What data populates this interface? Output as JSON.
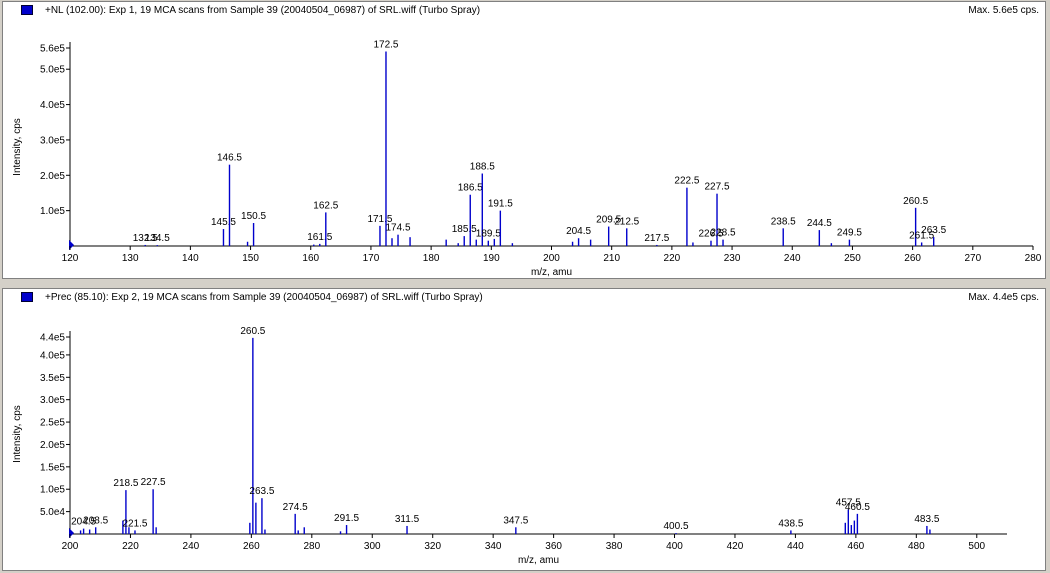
{
  "chart_data": [
    {
      "type": "bar",
      "title": "+NL (102.00): Exp 1, 19 MCA scans from Sample 39 (20040504_06987) of SRL.wiff (Turbo Spray)",
      "max_label": "Max. 5.6e5 cps.",
      "xlabel": "m/z, amu",
      "ylabel": "Intensity, cps",
      "xlim": [
        120,
        280
      ],
      "ylim": [
        0,
        560000
      ],
      "x_ticks": [
        120,
        130,
        140,
        150,
        160,
        170,
        180,
        190,
        200,
        210,
        220,
        230,
        240,
        250,
        260,
        270,
        280
      ],
      "y_ticks": [
        {
          "value": 100000,
          "label": "1.0e5"
        },
        {
          "value": 200000,
          "label": "2.0e5"
        },
        {
          "value": 300000,
          "label": "3.0e5"
        },
        {
          "value": 400000,
          "label": "4.0e5"
        },
        {
          "value": 500000,
          "label": "5.0e5"
        },
        {
          "value": 560000,
          "label": "5.6e5"
        }
      ],
      "grid": false,
      "color": "#0000cc",
      "peaks": [
        {
          "x": 132.5,
          "y": 3000,
          "label": "132.5"
        },
        {
          "x": 134.5,
          "y": 2500,
          "label": "134.5"
        },
        {
          "x": 145.5,
          "y": 48000,
          "label": "145.5"
        },
        {
          "x": 146.5,
          "y": 230000,
          "label": "146.5"
        },
        {
          "x": 149.5,
          "y": 12000
        },
        {
          "x": 150.5,
          "y": 65000,
          "label": "150.5"
        },
        {
          "x": 160.5,
          "y": 4000
        },
        {
          "x": 161.5,
          "y": 6000,
          "label": "161.5"
        },
        {
          "x": 162.5,
          "y": 95000,
          "label": "162.5"
        },
        {
          "x": 171.5,
          "y": 57000,
          "label": "171.5"
        },
        {
          "x": 172.5,
          "y": 550000,
          "label": "172.5"
        },
        {
          "x": 173.5,
          "y": 22000
        },
        {
          "x": 174.5,
          "y": 32000,
          "label": "174.5"
        },
        {
          "x": 176.5,
          "y": 25000
        },
        {
          "x": 182.5,
          "y": 18000
        },
        {
          "x": 184.5,
          "y": 8000
        },
        {
          "x": 185.5,
          "y": 28000,
          "label": "185.5"
        },
        {
          "x": 186.5,
          "y": 145000,
          "label": "186.5"
        },
        {
          "x": 187.5,
          "y": 18000
        },
        {
          "x": 188.5,
          "y": 205000,
          "label": "188.5"
        },
        {
          "x": 189.5,
          "y": 15000,
          "label": "189.5"
        },
        {
          "x": 190.5,
          "y": 20000
        },
        {
          "x": 191.5,
          "y": 100000,
          "label": "191.5"
        },
        {
          "x": 193.5,
          "y": 8000
        },
        {
          "x": 203.5,
          "y": 12000
        },
        {
          "x": 204.5,
          "y": 22000,
          "label": "204.5"
        },
        {
          "x": 206.5,
          "y": 18000
        },
        {
          "x": 209.5,
          "y": 55000,
          "label": "209.5"
        },
        {
          "x": 212.5,
          "y": 50000,
          "label": "212.5"
        },
        {
          "x": 217.5,
          "y": 3000,
          "label": "217.5"
        },
        {
          "x": 222.5,
          "y": 165000,
          "label": "222.5"
        },
        {
          "x": 223.5,
          "y": 10000
        },
        {
          "x": 226.5,
          "y": 15000,
          "label": "226.5"
        },
        {
          "x": 227.5,
          "y": 148000,
          "label": "227.5"
        },
        {
          "x": 228.5,
          "y": 18000,
          "label": "228.5"
        },
        {
          "x": 238.5,
          "y": 50000,
          "label": "238.5"
        },
        {
          "x": 244.5,
          "y": 45000,
          "label": "244.5"
        },
        {
          "x": 246.5,
          "y": 8000
        },
        {
          "x": 249.5,
          "y": 18000,
          "label": "249.5"
        },
        {
          "x": 260.5,
          "y": 108000,
          "label": "260.5"
        },
        {
          "x": 261.5,
          "y": 10000,
          "label": "261.5"
        },
        {
          "x": 263.5,
          "y": 25000,
          "label": "263.5"
        }
      ]
    },
    {
      "type": "bar",
      "title": "+Prec (85.10): Exp 2, 19 MCA scans from Sample 39 (20040504_06987) of SRL.wiff (Turbo Spray)",
      "max_label": "Max. 4.4e5 cps.",
      "xlabel": "m/z, amu",
      "ylabel": "Intensity, cps",
      "xlim": [
        200,
        510
      ],
      "ylim": [
        0,
        440000
      ],
      "x_ticks": [
        200,
        220,
        240,
        260,
        280,
        300,
        320,
        340,
        360,
        380,
        400,
        420,
        440,
        460,
        480,
        500
      ],
      "y_ticks": [
        {
          "value": 50000,
          "label": "5.0e4"
        },
        {
          "value": 100000,
          "label": "1.0e5"
        },
        {
          "value": 150000,
          "label": "1.5e5"
        },
        {
          "value": 200000,
          "label": "2.0e5"
        },
        {
          "value": 250000,
          "label": "2.5e5"
        },
        {
          "value": 300000,
          "label": "3.0e5"
        },
        {
          "value": 350000,
          "label": "3.5e5"
        },
        {
          "value": 400000,
          "label": "4.0e5"
        },
        {
          "value": 440000,
          "label": "4.4e5"
        }
      ],
      "grid": false,
      "color": "#0000cc",
      "peaks": [
        {
          "x": 203.5,
          "y": 8000
        },
        {
          "x": 204.5,
          "y": 12000,
          "label": "204.5"
        },
        {
          "x": 206.5,
          "y": 10000
        },
        {
          "x": 208.5,
          "y": 15000,
          "label": "208.5"
        },
        {
          "x": 217.5,
          "y": 30000
        },
        {
          "x": 218.5,
          "y": 98000,
          "label": "218.5"
        },
        {
          "x": 219.5,
          "y": 15000
        },
        {
          "x": 221.5,
          "y": 8000,
          "label": "221.5"
        },
        {
          "x": 227.5,
          "y": 100000,
          "label": "227.5"
        },
        {
          "x": 228.5,
          "y": 15000
        },
        {
          "x": 259.5,
          "y": 25000
        },
        {
          "x": 260.5,
          "y": 438000,
          "label": "260.5"
        },
        {
          "x": 261.5,
          "y": 70000
        },
        {
          "x": 263.5,
          "y": 80000,
          "label": "263.5"
        },
        {
          "x": 264.5,
          "y": 10000
        },
        {
          "x": 274.5,
          "y": 45000,
          "label": "274.5"
        },
        {
          "x": 275.5,
          "y": 8000
        },
        {
          "x": 277.5,
          "y": 15000
        },
        {
          "x": 289.5,
          "y": 6000
        },
        {
          "x": 291.5,
          "y": 20000,
          "label": "291.5"
        },
        {
          "x": 311.5,
          "y": 18000,
          "label": "311.5"
        },
        {
          "x": 347.5,
          "y": 15000,
          "label": "347.5"
        },
        {
          "x": 400.5,
          "y": 2000,
          "label": "400.5"
        },
        {
          "x": 438.5,
          "y": 8000,
          "label": "438.5"
        },
        {
          "x": 456.5,
          "y": 25000
        },
        {
          "x": 457.5,
          "y": 55000,
          "label": "457.5"
        },
        {
          "x": 458.5,
          "y": 20000
        },
        {
          "x": 459.5,
          "y": 30000
        },
        {
          "x": 460.5,
          "y": 45000,
          "label": "460.5"
        },
        {
          "x": 483.5,
          "y": 18000,
          "label": "483.5"
        },
        {
          "x": 484.5,
          "y": 10000
        }
      ]
    }
  ]
}
